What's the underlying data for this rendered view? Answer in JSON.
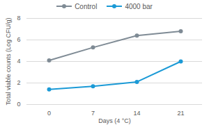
{
  "chart_data": {
    "type": "line",
    "x_label": "Days (4 °C)",
    "y_label": "Total viable counts (Log CFU/g)",
    "categories": [
      "0",
      "7",
      "14",
      "21"
    ],
    "series": [
      {
        "name": "Control",
        "color": "#7f8b95",
        "marker": "circle",
        "values": [
          4.1,
          5.3,
          6.4,
          6.8
        ]
      },
      {
        "name": "4000 bar",
        "color": "#1b9ad6",
        "marker": "circle",
        "values": [
          1.4,
          1.7,
          2.1,
          4.0
        ]
      }
    ],
    "ylim": [
      0,
      8
    ],
    "yticks": [
      0,
      2,
      4,
      6,
      8
    ],
    "grid": true,
    "legend": "top"
  }
}
